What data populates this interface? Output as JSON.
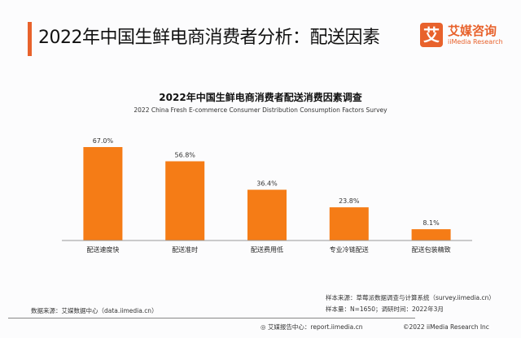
{
  "header": {
    "title": "2022年中国生鲜电商消费者分析：配送因素"
  },
  "logo": {
    "mark": "艾",
    "cn": "艾媒咨询",
    "en": "iiMedia Research"
  },
  "chart_data": {
    "type": "bar",
    "title": "2022年中国生鲜电商消费者配送消费因素调查",
    "subtitle": "2022 China Fresh E-commerce Consumer Distribution Consumption Factors Survey",
    "categories": [
      "配送速度快",
      "配送准时",
      "配送费用低",
      "专业冷链配送",
      "配送包装精致"
    ],
    "values": [
      67.0,
      56.8,
      36.4,
      23.8,
      8.1
    ],
    "value_labels": [
      "67.0%",
      "56.8%",
      "36.4%",
      "23.8%",
      "8.1%"
    ],
    "unit": "%",
    "ylim": [
      0,
      70
    ],
    "grid": false,
    "bar_color": "#f57c16"
  },
  "footer": {
    "data_source": "数据来源：艾媒数据中心（data.iimedia.cn）",
    "sample_source": "样本来源：草莓派数据调查与计算系统（survey.iimedia.cn）",
    "sample_size": "样本量：N=1650；调研时间：2022年3月",
    "report_center": "艾媒报告中心：report.iimedia.cn",
    "copyright": "©2022  iiMedia Research  Inc"
  }
}
